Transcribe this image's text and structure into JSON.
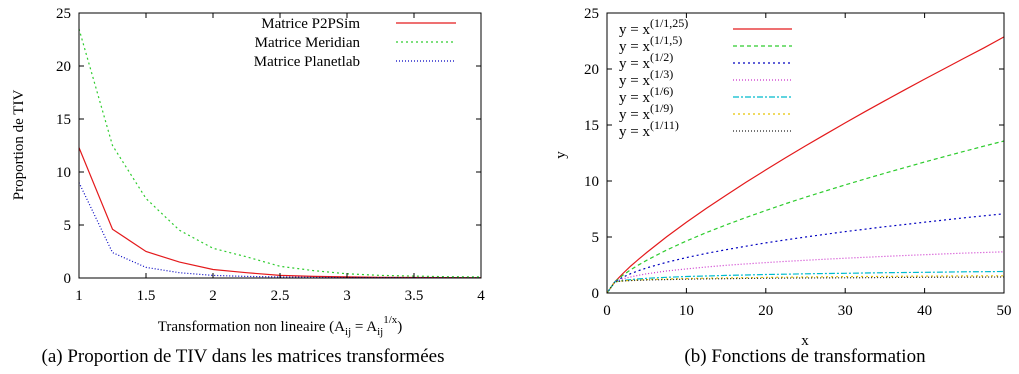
{
  "chart_data": [
    {
      "type": "line",
      "ylabel": "Proportion de TIV",
      "xlabel_parts": {
        "pre": "Transformation non lineaire (A",
        "sub1": "ij",
        "mid": " = A",
        "sub2": "ij",
        "sup": "1/x",
        "post": ")"
      },
      "caption": "(a) Proportion de TIV dans les matrices transformées",
      "xlim": [
        1,
        4
      ],
      "ylim": [
        0,
        25
      ],
      "xticks": [
        "1",
        "1.5",
        "2",
        "2.5",
        "3",
        "3.5",
        "4"
      ],
      "yticks": [
        "0",
        "5",
        "10",
        "15",
        "20",
        "25"
      ],
      "grid": false,
      "legend_position": "top-right",
      "x": [
        1,
        1.25,
        1.5,
        1.75,
        2,
        2.25,
        2.5,
        2.75,
        3,
        3.25,
        3.5,
        3.75,
        4
      ],
      "series": [
        {
          "name": "Matrice P2PSim",
          "color": "#e41a1c",
          "dash": "",
          "values": [
            12.3,
            4.6,
            2.5,
            1.5,
            0.8,
            0.5,
            0.25,
            0.15,
            0.1,
            0.07,
            0.05,
            0.04,
            0.03
          ]
        },
        {
          "name": "Matrice Meridian",
          "color": "#2ecc2e",
          "dash": "2,3",
          "values": [
            23.5,
            12.5,
            7.5,
            4.5,
            2.8,
            2.0,
            1.1,
            0.7,
            0.4,
            0.25,
            0.18,
            0.12,
            0.1
          ]
        },
        {
          "name": "Matrice Planetlab",
          "color": "#0000c0",
          "dash": "1,2",
          "values": [
            9.0,
            2.4,
            1.0,
            0.5,
            0.25,
            0.15,
            0.1,
            0.07,
            0.05,
            0.04,
            0.03,
            0.02,
            0.02
          ]
        }
      ]
    },
    {
      "type": "line",
      "xlabel": "x",
      "ylabel": "y",
      "caption": "(b) Fonctions de transformation",
      "xlim": [
        0,
        50
      ],
      "ylim": [
        0,
        25
      ],
      "xticks": [
        "0",
        "10",
        "20",
        "30",
        "40",
        "50"
      ],
      "yticks": [
        "0",
        "5",
        "10",
        "15",
        "20",
        "25"
      ],
      "grid": false,
      "legend_position": "top-left",
      "legend_prefix": "y = x",
      "x": [
        0,
        1,
        2,
        3,
        4,
        5,
        7.5,
        10,
        12.5,
        15,
        17.5,
        20,
        22.5,
        25,
        27.5,
        30,
        32.5,
        35,
        37.5,
        40,
        42.5,
        45,
        47.5,
        50
      ],
      "series": [
        {
          "name": "(1/1,25)",
          "color": "#e41a1c",
          "dash": "",
          "values": [
            0,
            1,
            1.74,
            2.41,
            3.03,
            3.62,
            5.01,
            6.31,
            7.55,
            8.73,
            9.88,
            10.99,
            12.08,
            13.13,
            14.17,
            15.19,
            16.19,
            17.17,
            18.14,
            19.1,
            20.04,
            20.97,
            21.89,
            22.87
          ]
        },
        {
          "name": "(1/1,5)",
          "color": "#2ecc2e",
          "dash": "4,3",
          "values": [
            0,
            1,
            1.59,
            2.08,
            2.52,
            2.92,
            3.83,
            4.64,
            5.39,
            6.08,
            6.74,
            7.37,
            7.97,
            8.55,
            9.11,
            9.65,
            10.18,
            10.7,
            11.2,
            11.7,
            12.18,
            12.65,
            13.12,
            13.57
          ]
        },
        {
          "name": "(1/2)",
          "color": "#0000c0",
          "dash": "2,3",
          "values": [
            0,
            1,
            1.41,
            1.73,
            2.0,
            2.24,
            2.74,
            3.16,
            3.54,
            3.87,
            4.18,
            4.47,
            4.74,
            5.0,
            5.24,
            5.48,
            5.7,
            5.92,
            6.12,
            6.32,
            6.52,
            6.71,
            6.89,
            7.07
          ]
        },
        {
          "name": "(1/3)",
          "color": "#cc33cc",
          "dash": "1,2",
          "values": [
            0,
            1,
            1.26,
            1.44,
            1.59,
            1.71,
            1.96,
            2.15,
            2.32,
            2.47,
            2.6,
            2.71,
            2.82,
            2.92,
            3.02,
            3.11,
            3.19,
            3.27,
            3.35,
            3.42,
            3.49,
            3.56,
            3.62,
            3.68
          ]
        },
        {
          "name": "(1/6)",
          "color": "#00bbcc",
          "dash": "6,2,2,2",
          "values": [
            0,
            1,
            1.12,
            1.2,
            1.26,
            1.31,
            1.4,
            1.47,
            1.52,
            1.57,
            1.61,
            1.65,
            1.68,
            1.71,
            1.74,
            1.76,
            1.79,
            1.81,
            1.83,
            1.85,
            1.87,
            1.89,
            1.9,
            1.92
          ]
        },
        {
          "name": "(1/9)",
          "color": "#e6c300",
          "dash": "2,3",
          "values": [
            0,
            1,
            1.08,
            1.13,
            1.17,
            1.2,
            1.25,
            1.29,
            1.32,
            1.35,
            1.37,
            1.39,
            1.41,
            1.43,
            1.45,
            1.46,
            1.47,
            1.48,
            1.5,
            1.51,
            1.52,
            1.53,
            1.54,
            1.54
          ]
        },
        {
          "name": "(1/11)",
          "color": "#222222",
          "dash": "1,2",
          "values": [
            0,
            1,
            1.07,
            1.11,
            1.13,
            1.16,
            1.2,
            1.23,
            1.26,
            1.28,
            1.3,
            1.31,
            1.33,
            1.34,
            1.35,
            1.36,
            1.37,
            1.38,
            1.39,
            1.4,
            1.41,
            1.41,
            1.42,
            1.43
          ]
        }
      ]
    }
  ]
}
